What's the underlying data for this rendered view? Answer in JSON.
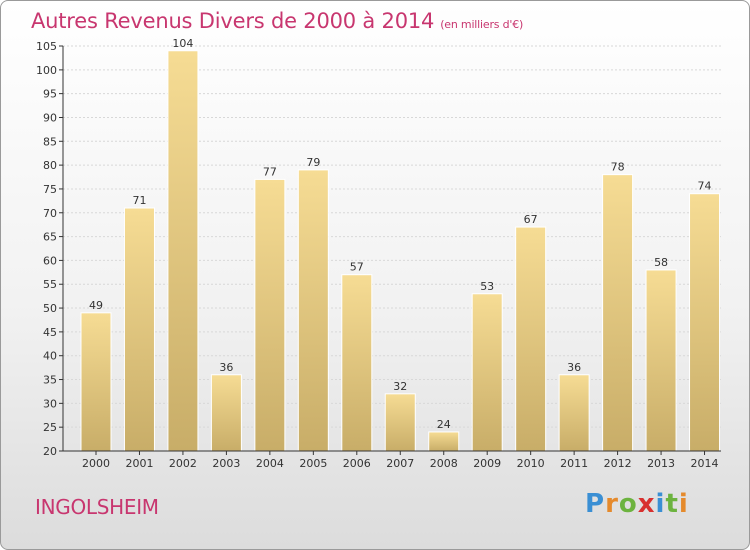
{
  "header": {
    "title": "Autres Revenus Divers de 2000 à 2014",
    "unit": "(en milliers d'€)"
  },
  "footer": {
    "town": "INGOLSHEIM",
    "logo_letters": [
      "P",
      "r",
      "o",
      "x",
      "i",
      "t",
      "i"
    ]
  },
  "colors": {
    "title": "#c8366f",
    "bar_top": "#f6dc94",
    "bar_bottom": "#c8ad68",
    "axis": "#333333",
    "grid": "#d8d8d8"
  },
  "chart_data": {
    "type": "bar",
    "title": "Autres Revenus Divers de 2000 à 2014",
    "subtitle": "(en milliers d'€)",
    "xlabel": "",
    "ylabel": "",
    "categories": [
      "2000",
      "2001",
      "2002",
      "2003",
      "2004",
      "2005",
      "2006",
      "2007",
      "2008",
      "2009",
      "2010",
      "2011",
      "2012",
      "2013",
      "2014"
    ],
    "values": [
      49,
      71,
      104,
      36,
      77,
      79,
      57,
      32,
      24,
      53,
      67,
      36,
      78,
      58,
      74
    ],
    "ylim": [
      20,
      105
    ],
    "yticks": [
      20,
      25,
      30,
      35,
      40,
      45,
      50,
      55,
      60,
      65,
      70,
      75,
      80,
      85,
      90,
      95,
      100,
      105
    ],
    "grid": true,
    "legend": "none"
  }
}
